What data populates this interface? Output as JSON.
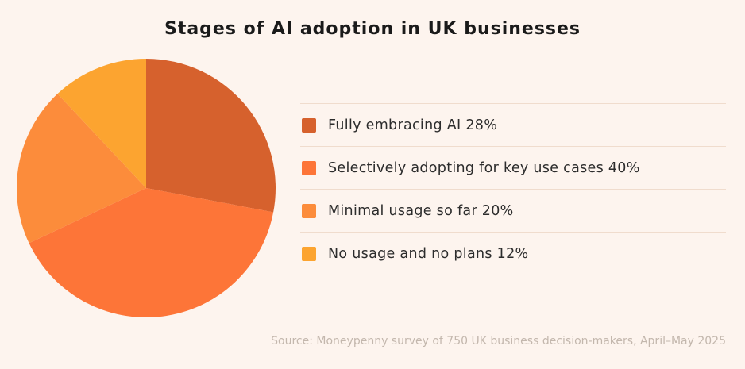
{
  "chart_data": {
    "type": "pie",
    "title": "Stages of AI adoption in UK businesses",
    "source": "Source: Moneypenny survey of 750 UK business decision-makers, April–May 2025",
    "legend_position": "right",
    "slices": [
      {
        "label": "Fully embracing AI 28%",
        "value": 28,
        "color": "#d6612d"
      },
      {
        "label": "Selectively adopting for key use cases 40%",
        "value": 40,
        "color": "#fd7538"
      },
      {
        "label": "Minimal usage so far 20%",
        "value": 20,
        "color": "#fc8c3b"
      },
      {
        "label": "No usage and no plans 12%",
        "value": 12,
        "color": "#fca430"
      }
    ]
  }
}
